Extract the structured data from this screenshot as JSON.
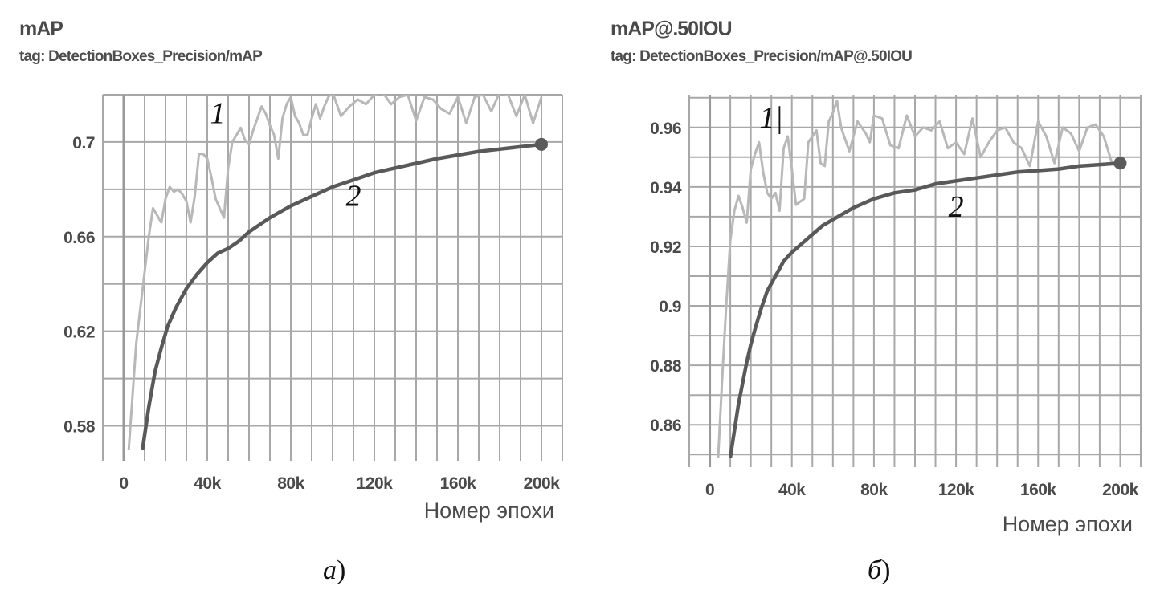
{
  "chart_data": [
    {
      "type": "line",
      "title": "mAP",
      "subtitle": "tag: DetectionBoxes_Precision/mAP",
      "xlabel": "Номер эпохи",
      "ylabel": "",
      "caption_letter": "а",
      "caption_paren": ")",
      "xlim": [
        -10000,
        210000
      ],
      "ylim": [
        0.57,
        0.72
      ],
      "x_ticks": [
        0,
        40000,
        80000,
        120000,
        160000,
        200000
      ],
      "x_tick_labels": [
        "0",
        "40k",
        "80k",
        "120k",
        "160k",
        "200k"
      ],
      "y_ticks": [
        0.58,
        0.62,
        0.66,
        0.7
      ],
      "y_tick_labels": [
        "0.58",
        "0.62",
        "0.66",
        "0.7"
      ],
      "grid": true,
      "curve_labels": [
        {
          "text": "1",
          "x": 45000,
          "y": 0.708
        },
        {
          "text": "2",
          "x": 110000,
          "y": 0.673
        }
      ],
      "series": [
        {
          "id": "1",
          "color": "#b8b8b8",
          "x": [
            2000,
            4000,
            6000,
            8000,
            10000,
            12000,
            14000,
            16000,
            18000,
            20000,
            22000,
            24000,
            26000,
            28000,
            30000,
            32000,
            34000,
            36000,
            38000,
            40000,
            42000,
            44000,
            46000,
            48000,
            50000,
            52000,
            54000,
            56000,
            58000,
            60000,
            62000,
            64000,
            66000,
            68000,
            70000,
            72000,
            74000,
            76000,
            78000,
            80000,
            82000,
            84000,
            86000,
            88000,
            90000,
            92000,
            94000,
            96000,
            98000,
            100000,
            104000,
            108000,
            112000,
            116000,
            120000,
            124000,
            128000,
            132000,
            136000,
            140000,
            144000,
            148000,
            152000,
            156000,
            160000,
            164000,
            168000,
            172000,
            176000,
            180000,
            184000,
            188000,
            192000,
            196000,
            200000
          ],
          "values": [
            0.565,
            0.59,
            0.615,
            0.63,
            0.645,
            0.66,
            0.672,
            0.669,
            0.666,
            0.676,
            0.681,
            0.679,
            0.68,
            0.678,
            0.675,
            0.666,
            0.677,
            0.695,
            0.695,
            0.693,
            0.685,
            0.676,
            0.672,
            0.668,
            0.689,
            0.7,
            0.703,
            0.706,
            0.701,
            0.699,
            0.705,
            0.71,
            0.715,
            0.712,
            0.707,
            0.703,
            0.693,
            0.71,
            0.716,
            0.719,
            0.711,
            0.708,
            0.703,
            0.703,
            0.71,
            0.716,
            0.71,
            0.715,
            0.719,
            0.721,
            0.711,
            0.715,
            0.718,
            0.716,
            0.72,
            0.721,
            0.716,
            0.719,
            0.72,
            0.709,
            0.719,
            0.718,
            0.714,
            0.712,
            0.719,
            0.708,
            0.719,
            0.72,
            0.713,
            0.721,
            0.72,
            0.711,
            0.72,
            0.708,
            0.719
          ]
        },
        {
          "id": "2",
          "color": "#595959",
          "x": [
            9000,
            12000,
            15000,
            18000,
            21000,
            25000,
            30000,
            35000,
            40000,
            45000,
            50000,
            55000,
            60000,
            70000,
            80000,
            90000,
            100000,
            110000,
            120000,
            130000,
            140000,
            150000,
            160000,
            170000,
            180000,
            190000,
            200000
          ],
          "values": [
            0.57,
            0.588,
            0.603,
            0.613,
            0.622,
            0.63,
            0.638,
            0.644,
            0.649,
            0.653,
            0.655,
            0.658,
            0.662,
            0.668,
            0.673,
            0.677,
            0.681,
            0.684,
            0.687,
            0.689,
            0.691,
            0.693,
            0.6945,
            0.696,
            0.697,
            0.698,
            0.699
          ]
        }
      ]
    },
    {
      "type": "line",
      "title": "mAP@.50IOU",
      "subtitle": "tag: DetectionBoxes_Precision/mAP@.50IOU",
      "xlabel": "Номер эпохи",
      "ylabel": "",
      "caption_letter": "б",
      "caption_paren": ")",
      "xlim": [
        -10000,
        210000
      ],
      "ylim": [
        0.849,
        0.971
      ],
      "x_ticks": [
        0,
        40000,
        80000,
        120000,
        160000,
        200000
      ],
      "x_tick_labels": [
        "0",
        "40k",
        "80k",
        "120k",
        "160k",
        "200k"
      ],
      "y_ticks": [
        0.86,
        0.88,
        0.9,
        0.92,
        0.94,
        0.96
      ],
      "y_tick_labels": [
        "0.86",
        "0.88",
        "0.9",
        "0.92",
        "0.94",
        "0.96"
      ],
      "grid": true,
      "curve_labels": [
        {
          "text": "1|",
          "x": 30000,
          "y": 0.96
        },
        {
          "text": "2",
          "x": 120000,
          "y": 0.93
        }
      ],
      "series": [
        {
          "id": "1",
          "color": "#b8b8b8",
          "x": [
            4000,
            6000,
            8000,
            10000,
            12000,
            14000,
            16000,
            18000,
            20000,
            22000,
            24000,
            26000,
            28000,
            30000,
            32000,
            34000,
            36000,
            38000,
            40000,
            42000,
            44000,
            46000,
            48000,
            50000,
            52000,
            54000,
            56000,
            58000,
            60000,
            62000,
            64000,
            66000,
            68000,
            70000,
            72000,
            74000,
            76000,
            78000,
            80000,
            84000,
            88000,
            92000,
            96000,
            100000,
            104000,
            108000,
            112000,
            116000,
            120000,
            124000,
            128000,
            132000,
            136000,
            140000,
            144000,
            148000,
            152000,
            156000,
            160000,
            164000,
            168000,
            172000,
            176000,
            180000,
            184000,
            188000,
            192000,
            196000,
            200000
          ],
          "values": [
            0.848,
            0.875,
            0.9,
            0.922,
            0.932,
            0.937,
            0.933,
            0.928,
            0.946,
            0.951,
            0.955,
            0.945,
            0.938,
            0.936,
            0.938,
            0.932,
            0.953,
            0.957,
            0.946,
            0.934,
            0.935,
            0.936,
            0.955,
            0.957,
            0.959,
            0.948,
            0.947,
            0.962,
            0.965,
            0.969,
            0.96,
            0.956,
            0.952,
            0.957,
            0.962,
            0.96,
            0.958,
            0.955,
            0.964,
            0.963,
            0.954,
            0.953,
            0.964,
            0.957,
            0.96,
            0.959,
            0.962,
            0.953,
            0.955,
            0.951,
            0.963,
            0.95,
            0.955,
            0.959,
            0.96,
            0.955,
            0.953,
            0.947,
            0.962,
            0.957,
            0.948,
            0.96,
            0.958,
            0.952,
            0.96,
            0.961,
            0.957,
            0.948,
            0.946
          ]
        },
        {
          "id": "2",
          "color": "#595959",
          "x": [
            10000,
            12000,
            14000,
            16000,
            18000,
            20000,
            22000,
            25000,
            28000,
            32000,
            36000,
            40000,
            45000,
            50000,
            55000,
            60000,
            65000,
            70000,
            80000,
            90000,
            100000,
            110000,
            120000,
            130000,
            140000,
            150000,
            160000,
            170000,
            180000,
            190000,
            200000
          ],
          "values": [
            0.849,
            0.858,
            0.867,
            0.874,
            0.881,
            0.887,
            0.892,
            0.899,
            0.905,
            0.91,
            0.915,
            0.918,
            0.921,
            0.924,
            0.927,
            0.929,
            0.931,
            0.933,
            0.936,
            0.938,
            0.939,
            0.941,
            0.942,
            0.943,
            0.944,
            0.945,
            0.9455,
            0.946,
            0.947,
            0.9475,
            0.948
          ]
        }
      ]
    }
  ]
}
